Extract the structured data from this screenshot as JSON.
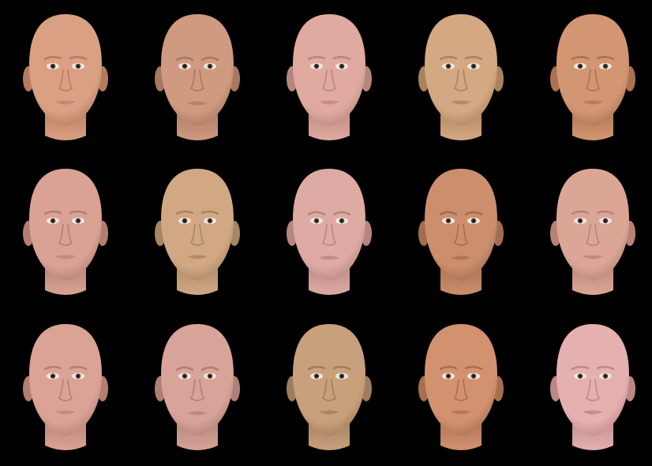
{
  "image": {
    "background": "#000000",
    "rows": 3,
    "columns": 5
  },
  "faces": [
    {
      "row": 1,
      "col": 1,
      "skin": "#d9a083",
      "shade": "#b77a5e",
      "lip": "#c98578",
      "expression": "neutral"
    },
    {
      "row": 1,
      "col": 2,
      "skin": "#cf9a80",
      "shade": "#a8775f",
      "lip": "#b98070",
      "expression": "frown"
    },
    {
      "row": 1,
      "col": 3,
      "skin": "#e0aaa0",
      "shade": "#b8857c",
      "lip": "#c98a84",
      "expression": "neutral"
    },
    {
      "row": 1,
      "col": 4,
      "skin": "#d4a882",
      "shade": "#a98360",
      "lip": "#b8876e",
      "expression": "neutral"
    },
    {
      "row": 1,
      "col": 5,
      "skin": "#d39672",
      "shade": "#a97252",
      "lip": "#b77a64",
      "expression": "neutral"
    },
    {
      "row": 2,
      "col": 1,
      "skin": "#d9a294",
      "shade": "#b27e72",
      "lip": "#c98580",
      "expression": "neutral"
    },
    {
      "row": 2,
      "col": 2,
      "skin": "#d2a884",
      "shade": "#a88563",
      "lip": "#b88870",
      "expression": "neutral"
    },
    {
      "row": 2,
      "col": 3,
      "skin": "#ddaaa4",
      "shade": "#b6857f",
      "lip": "#c88a86",
      "expression": "frown"
    },
    {
      "row": 2,
      "col": 4,
      "skin": "#cc8f6d",
      "shade": "#a26c4f",
      "lip": "#b27560",
      "expression": "frown"
    },
    {
      "row": 2,
      "col": 5,
      "skin": "#dca697",
      "shade": "#b78275",
      "lip": "#c98780",
      "expression": "neutral"
    },
    {
      "row": 3,
      "col": 1,
      "skin": "#dba395",
      "shade": "#b37f72",
      "lip": "#c98780",
      "expression": "neutral"
    },
    {
      "row": 3,
      "col": 2,
      "skin": "#d8a398",
      "shade": "#ae8075",
      "lip": "#c48680",
      "expression": "frown"
    },
    {
      "row": 3,
      "col": 3,
      "skin": "#c9a07c",
      "shade": "#9f7c5c",
      "lip": "#b08068",
      "expression": "neutral"
    },
    {
      "row": 3,
      "col": 4,
      "skin": "#d29270",
      "shade": "#a86e50",
      "lip": "#b57660",
      "expression": "neutral"
    },
    {
      "row": 3,
      "col": 5,
      "skin": "#e4b0b0",
      "shade": "#bb8787",
      "lip": "#c98c8c",
      "expression": "neutral"
    }
  ]
}
